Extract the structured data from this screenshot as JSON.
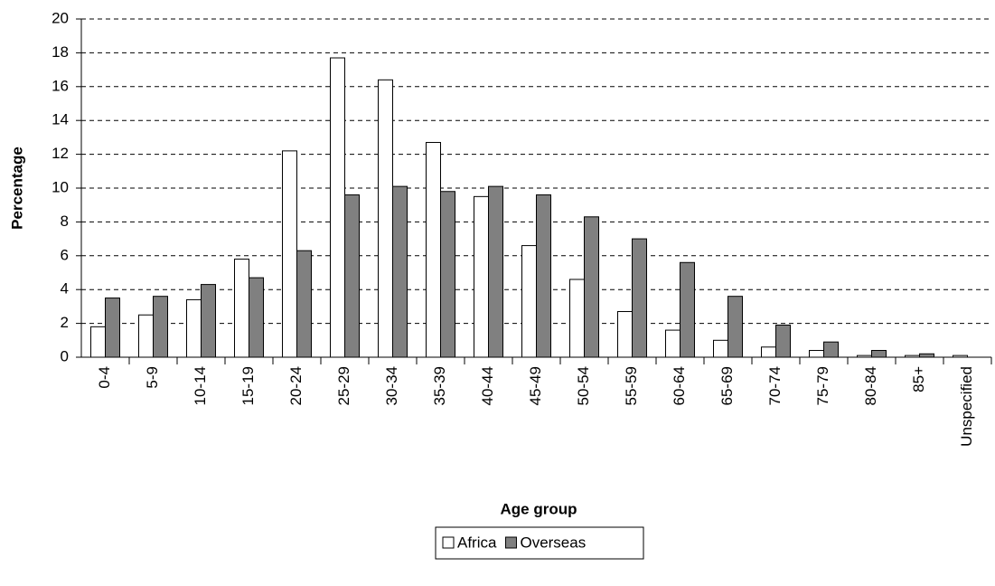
{
  "chart_data": {
    "type": "bar",
    "x_label": "Age group",
    "y_label": "Percentage",
    "categories": [
      "0-4",
      "5-9",
      "10-14",
      "15-19",
      "20-24",
      "25-29",
      "30-34",
      "35-39",
      "40-44",
      "45-49",
      "50-54",
      "55-59",
      "60-64",
      "65-69",
      "70-74",
      "75-79",
      "80-84",
      "85+",
      "Unspecified"
    ],
    "series": [
      {
        "name": "Africa",
        "color": "#ffffff",
        "values": [
          1.8,
          2.5,
          3.4,
          5.8,
          12.2,
          17.7,
          16.4,
          12.7,
          9.5,
          6.6,
          4.6,
          2.7,
          1.6,
          1.0,
          0.6,
          0.4,
          0.1,
          0.1,
          0.1
        ]
      },
      {
        "name": "Overseas",
        "color": "#808080",
        "values": [
          3.5,
          3.6,
          4.3,
          4.7,
          6.3,
          9.6,
          10.1,
          9.8,
          10.1,
          9.6,
          8.3,
          7.0,
          5.6,
          3.6,
          1.9,
          0.9,
          0.4,
          0.2,
          0
        ]
      }
    ],
    "ylim": [
      0,
      20
    ],
    "yticks": [
      0,
      2,
      4,
      6,
      8,
      10,
      12,
      14,
      16,
      18,
      20
    ],
    "grid": true,
    "legend": "bottom"
  }
}
